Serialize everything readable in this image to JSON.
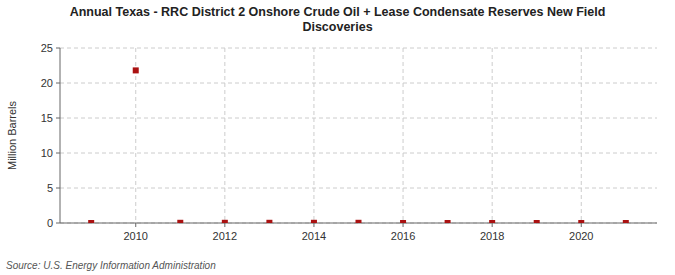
{
  "chart_data": {
    "type": "scatter",
    "title": "Annual Texas - RRC District 2 Onshore Crude Oil + Lease Condensate Reserves New Field\nDiscoveries",
    "y_label": "Million Barrels",
    "source": "Source: U.S. Energy Information Administration",
    "x": [
      2009,
      2010,
      2011,
      2012,
      2013,
      2014,
      2015,
      2016,
      2017,
      2018,
      2019,
      2020,
      2021
    ],
    "values": [
      0.0,
      21.8,
      0.03,
      0.03,
      0.03,
      0.03,
      0.03,
      0.0,
      0.0,
      0.0,
      0.0,
      0.0,
      0.0
    ],
    "color": "#aa1111",
    "marker": "square",
    "xlim": [
      2008.3,
      2021.7
    ],
    "ylim": [
      0,
      25
    ],
    "xticks": [
      2010,
      2012,
      2014,
      2016,
      2018,
      2020
    ],
    "yticks": [
      0,
      5,
      10,
      15,
      20,
      25
    ],
    "grid": true
  }
}
